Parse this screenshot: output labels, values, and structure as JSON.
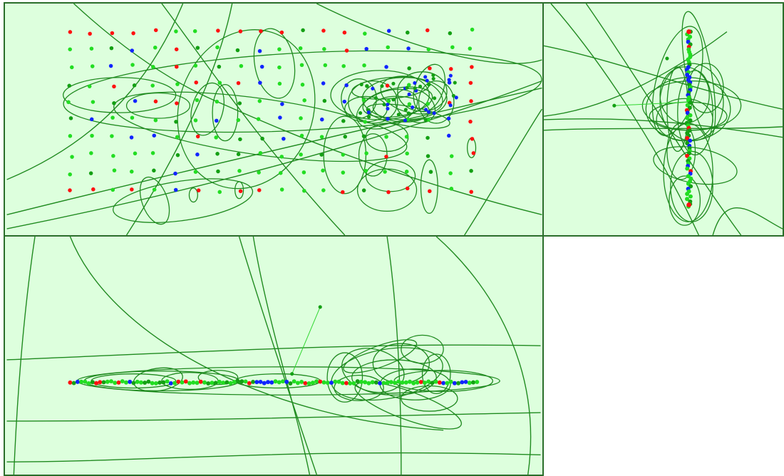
{
  "colors": {
    "background": "#ddffdd",
    "border": "#2b6e2b",
    "ellipse_stroke": "#1f8a1f",
    "point_red": "#ff1010",
    "point_blue": "#1024ff",
    "point_green": "#22dd22",
    "point_darkgreen": "#14a014"
  },
  "views": [
    {
      "id": "view-top",
      "name": "top-view-panel"
    },
    {
      "id": "view-side",
      "name": "side-view-panel"
    },
    {
      "id": "view-front",
      "name": "front-view-panel"
    }
  ]
}
